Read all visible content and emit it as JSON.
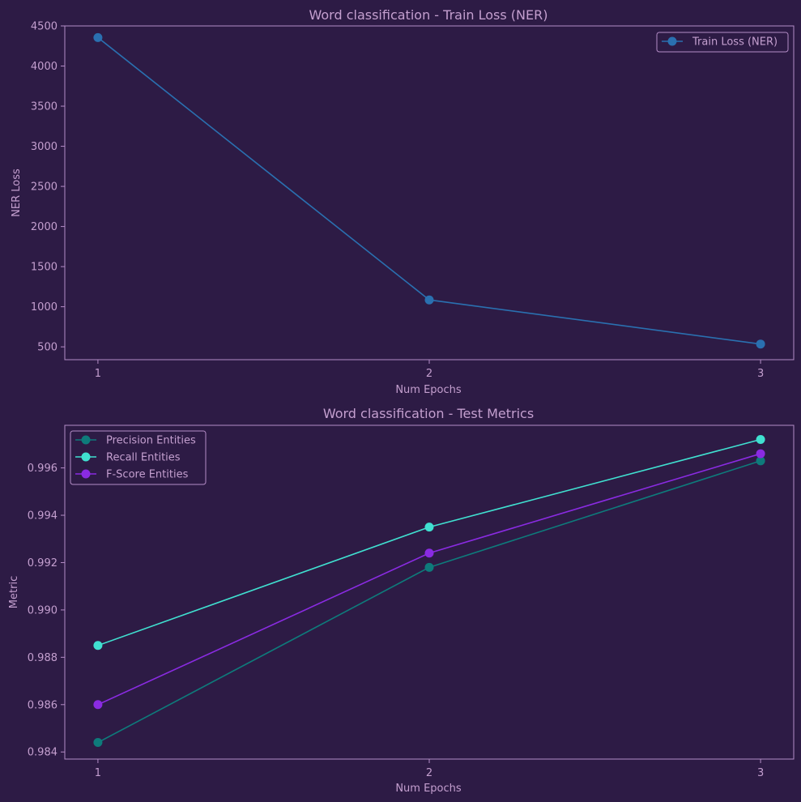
{
  "chart_data": [
    {
      "type": "line",
      "title": "Word classification - Train Loss (NER)",
      "xlabel": "Num Epochs",
      "ylabel": "NER Loss",
      "x": [
        1,
        2,
        3
      ],
      "xlim": [
        0.9,
        3.1
      ],
      "ylim": [
        340,
        4500
      ],
      "xticks": [
        1,
        2,
        3
      ],
      "yticks": [
        500,
        1000,
        1500,
        2000,
        2500,
        3000,
        3500,
        4000,
        4500
      ],
      "legend_position": "top-right",
      "series": [
        {
          "name": "Train Loss (NER)",
          "color": "#2a70b0",
          "values": [
            4355,
            1085,
            535
          ]
        }
      ]
    },
    {
      "type": "line",
      "title": "Word classification - Test Metrics",
      "xlabel": "Num Epochs",
      "ylabel": "Metric",
      "x": [
        1,
        2,
        3
      ],
      "xlim": [
        0.9,
        3.1
      ],
      "ylim": [
        0.9837,
        0.9978
      ],
      "xticks": [
        1,
        2,
        3
      ],
      "yticks": [
        "0.984",
        "0.986",
        "0.988",
        "0.990",
        "0.992",
        "0.994",
        "0.996"
      ],
      "legend_position": "top-left",
      "series": [
        {
          "name": "Precision Entities",
          "color": "#0e7b7b",
          "values": [
            0.9844,
            0.9918,
            0.9963
          ]
        },
        {
          "name": "Recall Entities",
          "color": "#40e0d0",
          "values": [
            0.9885,
            0.9935,
            0.9972
          ]
        },
        {
          "name": "F-Score Entities",
          "color": "#8a2be2",
          "values": [
            0.986,
            0.9924,
            0.9966
          ]
        }
      ]
    }
  ]
}
